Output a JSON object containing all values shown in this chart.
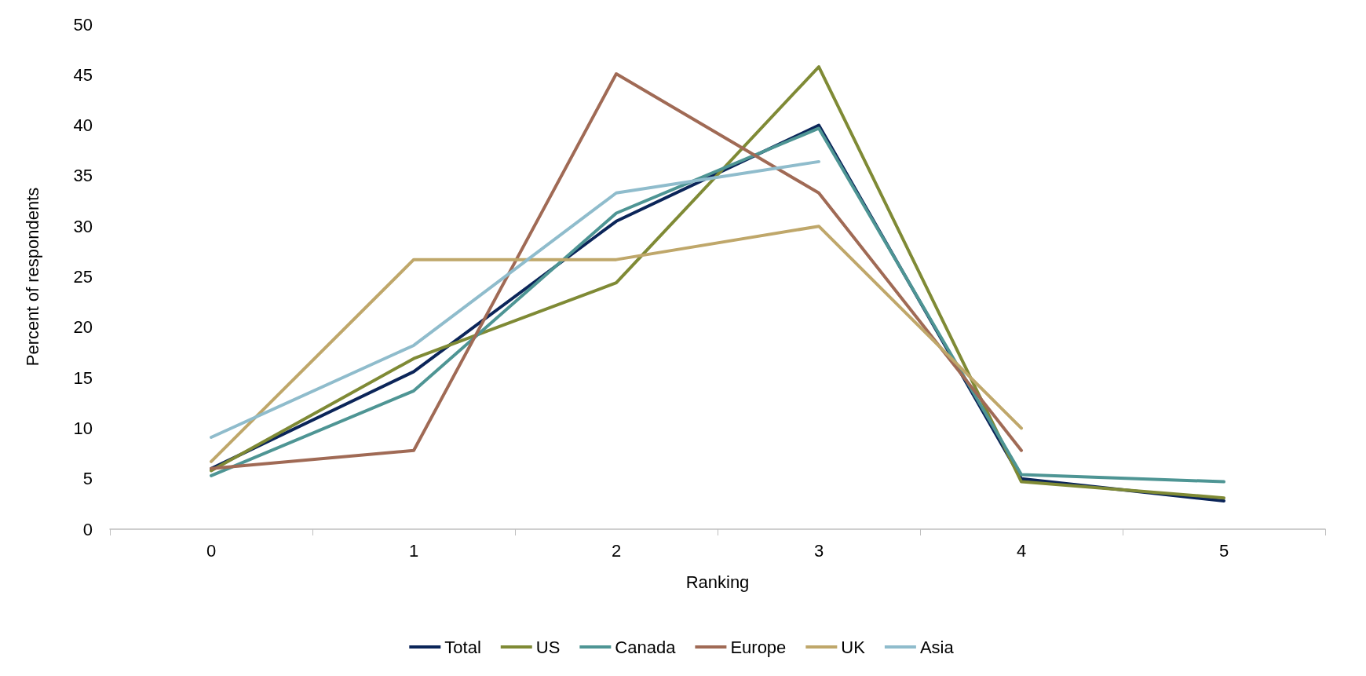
{
  "chart_data": {
    "type": "line",
    "xlabel": "Ranking",
    "ylabel": "Percent of respondents",
    "categories": [
      "0",
      "1",
      "2",
      "3",
      "4",
      "5"
    ],
    "series": [
      {
        "name": "Total",
        "color": "#0b2559",
        "values": [
          6.0,
          15.6,
          30.5,
          40.0,
          5.0,
          2.8
        ]
      },
      {
        "name": "US",
        "color": "#7f8a35",
        "values": [
          5.8,
          16.9,
          24.4,
          45.8,
          4.7,
          3.1
        ]
      },
      {
        "name": "Canada",
        "color": "#4e9594",
        "values": [
          5.3,
          13.7,
          31.3,
          39.7,
          5.4,
          4.7
        ]
      },
      {
        "name": "Europe",
        "color": "#a06a55",
        "values": [
          6.0,
          7.8,
          45.1,
          33.3,
          7.8,
          null
        ]
      },
      {
        "name": "UK",
        "color": "#bfa76a",
        "values": [
          6.7,
          26.7,
          26.7,
          30.0,
          10.0,
          null
        ]
      },
      {
        "name": "Asia",
        "color": "#8fbccc",
        "values": [
          9.1,
          18.2,
          33.3,
          36.4,
          null,
          null
        ]
      }
    ],
    "ylim": [
      0,
      50
    ],
    "yticks": [
      0,
      5,
      10,
      15,
      20,
      25,
      30,
      35,
      40,
      45,
      50
    ],
    "grid": false,
    "legend": "bottom",
    "marker": "none",
    "line_style": "solid"
  }
}
